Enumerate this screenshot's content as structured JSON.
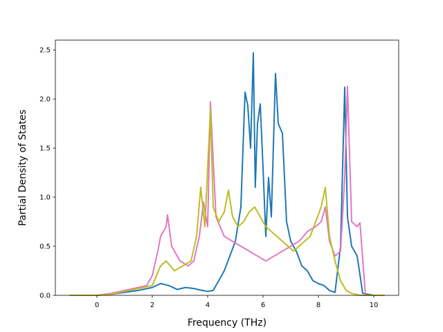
{
  "chart_data": {
    "type": "line",
    "title": "",
    "xlabel": "Frequency (THz)",
    "ylabel": "Partial Density of States",
    "xlim": [
      -1.5,
      10.9
    ],
    "ylim": [
      0.0,
      2.6
    ],
    "x_ticks": [
      "0",
      "2",
      "4",
      "6",
      "8",
      "10"
    ],
    "y_ticks": [
      "0.0",
      "0.5",
      "1.0",
      "1.5",
      "2.0",
      "2.5"
    ],
    "grid": false,
    "legend": "none",
    "series": [
      {
        "color": "#1f77b4",
        "x": [
          -1.0,
          0.0,
          0.5,
          1.0,
          1.5,
          2.0,
          2.3,
          2.6,
          2.9,
          3.2,
          3.5,
          3.8,
          4.0,
          4.2,
          4.4,
          4.6,
          4.8,
          5.0,
          5.2,
          5.35,
          5.45,
          5.55,
          5.65,
          5.72,
          5.8,
          5.9,
          6.0,
          6.1,
          6.2,
          6.3,
          6.45,
          6.55,
          6.7,
          6.85,
          7.0,
          7.2,
          7.4,
          7.6,
          7.8,
          8.0,
          8.2,
          8.4,
          8.6,
          8.8,
          8.95,
          9.05,
          9.2,
          9.4,
          9.6,
          10.0,
          10.4
        ],
        "y": [
          0.0,
          0.0,
          0.01,
          0.03,
          0.05,
          0.08,
          0.12,
          0.1,
          0.06,
          0.08,
          0.07,
          0.05,
          0.04,
          0.05,
          0.15,
          0.25,
          0.4,
          0.55,
          0.9,
          2.07,
          1.93,
          1.5,
          2.47,
          1.1,
          1.75,
          1.95,
          1.3,
          0.6,
          1.2,
          0.8,
          2.26,
          1.75,
          1.65,
          0.75,
          0.55,
          0.45,
          0.3,
          0.25,
          0.15,
          0.12,
          0.1,
          0.05,
          0.03,
          0.5,
          2.12,
          0.8,
          0.5,
          0.4,
          0.02,
          0.0,
          0.0
        ]
      },
      {
        "color": "#e377c2",
        "x": [
          -1.0,
          0.0,
          0.5,
          1.0,
          1.5,
          1.8,
          2.0,
          2.2,
          2.3,
          2.5,
          2.55,
          2.7,
          3.0,
          3.3,
          3.5,
          3.7,
          3.85,
          4.0,
          4.1,
          4.3,
          4.6,
          4.9,
          5.2,
          5.5,
          5.8,
          6.1,
          6.4,
          6.7,
          7.0,
          7.3,
          7.6,
          7.9,
          8.1,
          8.25,
          8.4,
          8.6,
          8.8,
          8.95,
          9.05,
          9.2,
          9.4,
          9.5,
          9.7,
          10.0,
          10.4
        ],
        "y": [
          0.0,
          0.0,
          0.02,
          0.05,
          0.08,
          0.1,
          0.2,
          0.45,
          0.6,
          0.7,
          0.82,
          0.5,
          0.35,
          0.3,
          0.35,
          0.6,
          0.95,
          0.7,
          1.97,
          0.8,
          0.6,
          0.55,
          0.5,
          0.45,
          0.4,
          0.35,
          0.4,
          0.45,
          0.5,
          0.55,
          0.65,
          0.7,
          0.75,
          0.9,
          0.55,
          0.4,
          0.45,
          1.2,
          2.13,
          0.75,
          0.7,
          0.74,
          0.0,
          0.0,
          0.0
        ]
      },
      {
        "color": "#bcbd22",
        "x": [
          -1.0,
          0.0,
          0.5,
          1.0,
          1.5,
          2.0,
          2.3,
          2.5,
          2.8,
          3.1,
          3.4,
          3.6,
          3.75,
          3.9,
          4.05,
          4.1,
          4.2,
          4.4,
          4.6,
          4.75,
          4.9,
          5.1,
          5.3,
          5.5,
          5.7,
          5.9,
          6.1,
          6.3,
          6.5,
          6.7,
          6.9,
          7.1,
          7.3,
          7.5,
          7.7,
          7.9,
          8.1,
          8.25,
          8.4,
          8.6,
          8.8,
          9.0,
          9.2,
          9.5,
          10.0,
          10.4
        ],
        "y": [
          0.0,
          0.0,
          0.01,
          0.04,
          0.07,
          0.1,
          0.3,
          0.35,
          0.25,
          0.3,
          0.35,
          0.6,
          1.1,
          0.7,
          1.6,
          1.9,
          0.9,
          0.75,
          0.85,
          1.07,
          0.8,
          0.7,
          0.75,
          0.85,
          0.9,
          0.8,
          0.7,
          0.65,
          0.6,
          0.55,
          0.5,
          0.45,
          0.5,
          0.55,
          0.6,
          0.75,
          0.9,
          1.1,
          0.6,
          0.35,
          0.15,
          0.05,
          0.02,
          0.0,
          0.0,
          0.0
        ]
      }
    ]
  }
}
